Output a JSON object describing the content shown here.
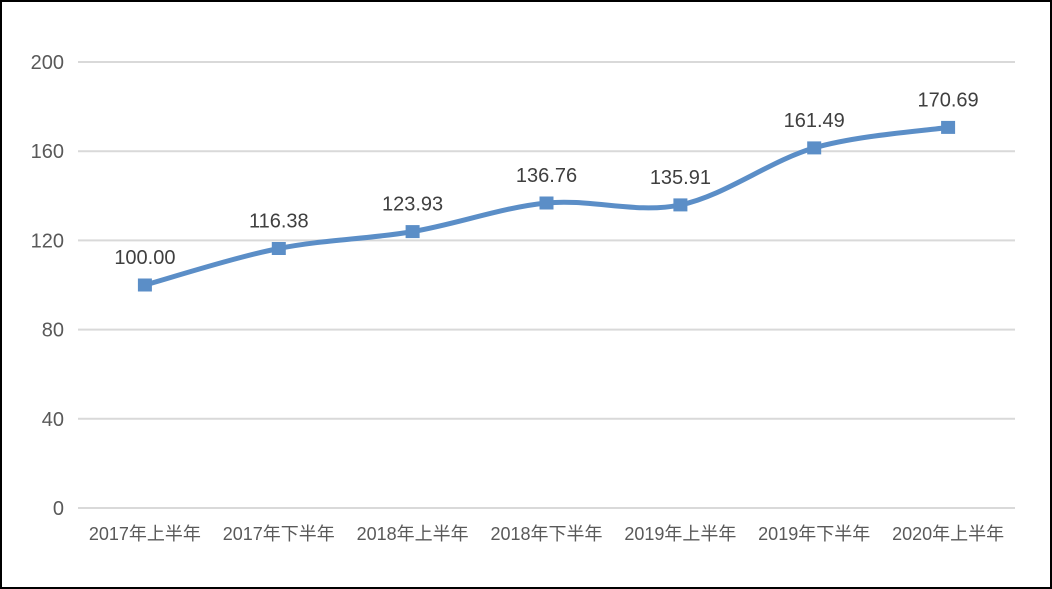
{
  "chart_data": {
    "type": "line",
    "title": "",
    "xlabel": "",
    "ylabel": "",
    "categories": [
      "2017年上半年",
      "2017年下半年",
      "2018年上半年",
      "2018年下半年",
      "2019年上半年",
      "2019年下半年",
      "2020年上半年"
    ],
    "values": [
      100.0,
      116.38,
      123.93,
      136.76,
      135.91,
      161.49,
      170.69
    ],
    "data_labels": [
      "100.00",
      "116.38",
      "123.93",
      "136.76",
      "135.91",
      "161.49",
      "170.69"
    ],
    "ylim": [
      0,
      200
    ],
    "yticks": [
      0,
      40,
      80,
      120,
      160,
      200
    ],
    "grid": true,
    "legend": false,
    "smooth": true,
    "marker": "square",
    "colors": {
      "line": "#5B8EC7",
      "marker": "#5B8EC7",
      "gridline": "#D9D9D9",
      "axis_label": "#595959",
      "data_label": "#3F3F3F",
      "frame_border": "#000000",
      "background": "#FFFFFF"
    }
  }
}
